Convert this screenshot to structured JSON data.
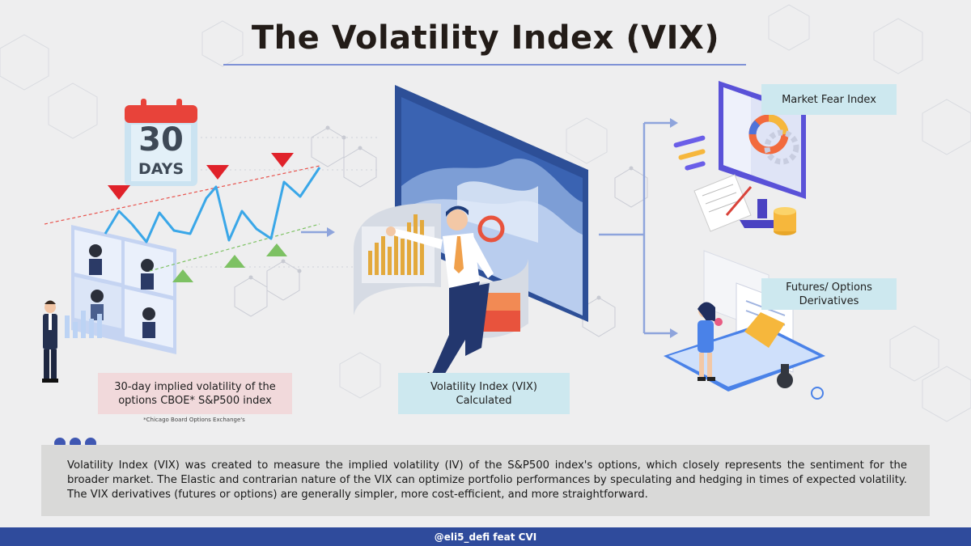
{
  "title": "The Volatility Index (VIX)",
  "calendar": {
    "number": "30",
    "unit": "DAYS"
  },
  "labels": {
    "left": "30-day implied volatility of the options CBOE* S&P500 index",
    "center": "Volatility Index (VIX) Calculated",
    "top_right": "Market Fear Index",
    "bottom_right": "Futures/ Options Derivatives"
  },
  "footnote": "*Chicago Board Options Exchange's",
  "description": "Volatility Index (VIX) was created to measure the implied volatility (IV) of the S&P500 index's options, which closely represents the sentiment for the broader market. The Elastic and contrarian nature of the VIX can optimize portfolio performances by speculating and hedging in times of expected volatility. The VIX derivatives (futures or options) are generally simpler, more cost-efficient, and more straightforward.",
  "footer": "@eli5_defi feat CVI",
  "colors": {
    "accent_blue": "#3f57b2",
    "footer_blue": "#2f4b9c",
    "chart_line": "#3aa7e8",
    "marker_red": "#e0222a",
    "marker_green": "#7dc163",
    "pink_box": "#f1d9db",
    "blue_box": "#cde8ef"
  },
  "icons": [
    "calendar-icon",
    "businessman-icon",
    "video-call-icon",
    "holographic-chart-screen-icon",
    "monitor-gauge-icon",
    "laptop-contract-icon",
    "arrow-right-icon"
  ]
}
